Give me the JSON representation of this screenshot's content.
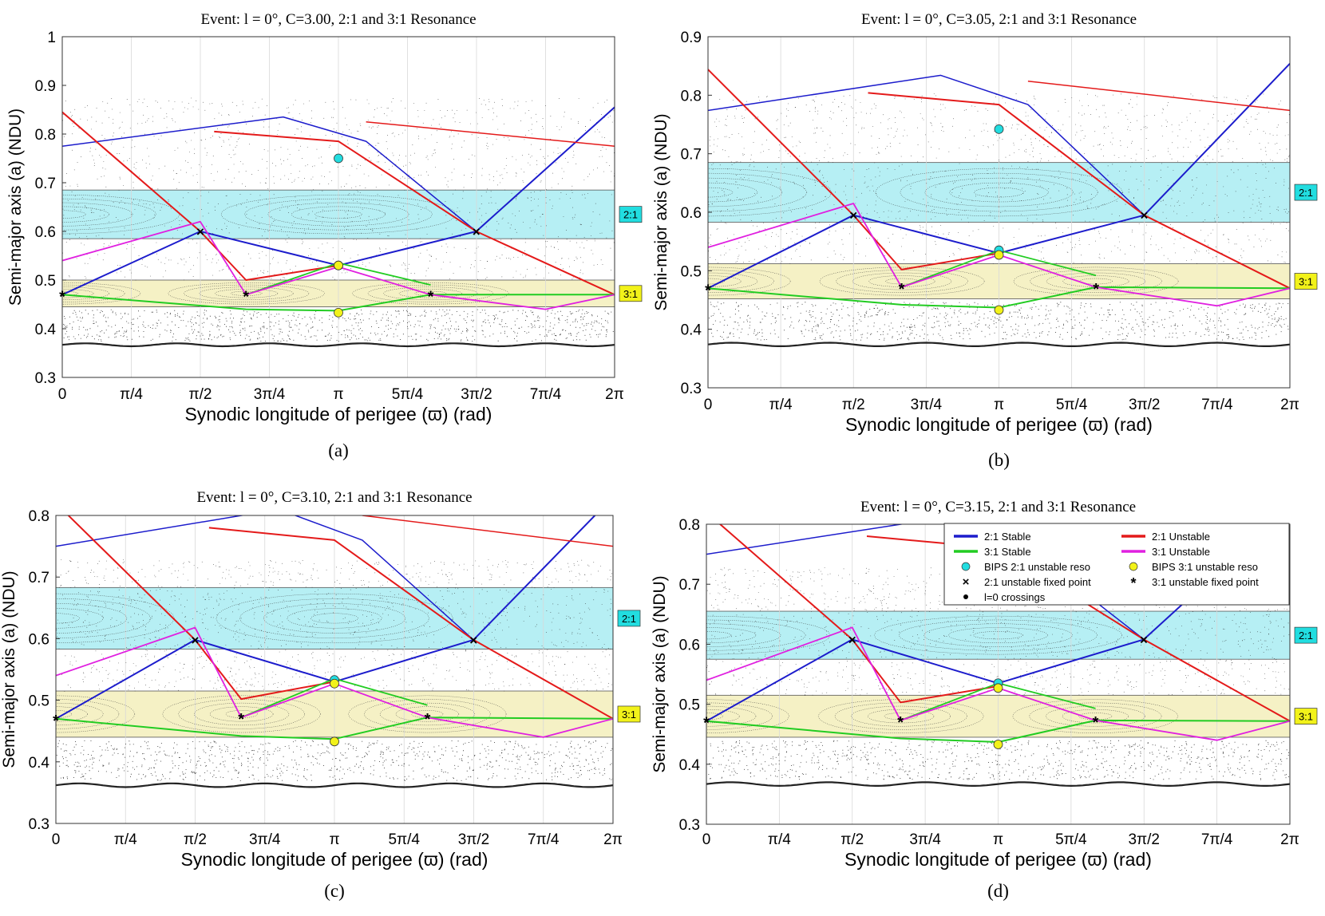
{
  "figure": {
    "xlabel": "Synodic longitude of perigee (ϖ) (rad)",
    "ylabel": "Semi-major axis (a) (NDU)",
    "x_ticks": [
      "0",
      "π/4",
      "π/2",
      "3π/4",
      "π",
      "5π/4",
      "3π/2",
      "7π/4",
      "2π"
    ],
    "colors": {
      "stable21": "#1c1ccc",
      "unstable21": "#e41a1a",
      "stable31": "#22cc22",
      "unstable31": "#e020e0",
      "band21": "#9eeaf0",
      "band31": "#f3eebb",
      "bips21": "#22dde0",
      "bips31": "#f2f21a"
    },
    "legend": {
      "items": [
        {
          "label": "2:1 Stable",
          "kind": "line",
          "color": "#1c1ccc"
        },
        {
          "label": "2:1 Unstable",
          "kind": "line",
          "color": "#e41a1a"
        },
        {
          "label": "3:1 Stable",
          "kind": "line",
          "color": "#22cc22"
        },
        {
          "label": "3:1 Unstable",
          "kind": "line",
          "color": "#e020e0"
        },
        {
          "label": "BIPS 2:1 unstable reso",
          "kind": "circle",
          "color": "#22dde0"
        },
        {
          "label": "BIPS 3:1 unstable reso",
          "kind": "circle",
          "color": "#f2f21a"
        },
        {
          "label": "2:1 unstable fixed point",
          "kind": "x",
          "color": "#000000"
        },
        {
          "label": "3:1 unstable fixed point",
          "kind": "star",
          "color": "#000000"
        },
        {
          "label": "l=0 crossings",
          "kind": "dot",
          "color": "#000000"
        }
      ]
    }
  },
  "chart_data": [
    {
      "type": "scatter",
      "title": "Event: l = 0°, C=3.00, 2:1 and 3:1 Resonance",
      "caption": "(a)",
      "xlabel": "Synodic longitude of perigee (ϖ) (rad)",
      "ylabel": "Semi-major axis (a) (NDU)",
      "xlim": [
        0,
        6.2832
      ],
      "ylim": [
        0.3,
        1.0
      ],
      "y_ticks": [
        "0.3",
        "0.4",
        "0.5",
        "0.6",
        "0.7",
        "0.8",
        "0.9",
        "1"
      ],
      "band_21": {
        "range": [
          0.585,
          0.685
        ],
        "label": "2:1"
      },
      "band_31": {
        "range": [
          0.445,
          0.5
        ],
        "label": "3:1"
      },
      "fixed_points_21": [
        {
          "x": 1.57,
          "y": 0.6
        },
        {
          "x": 4.71,
          "y": 0.6
        }
      ],
      "fixed_points_31": [
        {
          "x": 0.0,
          "y": 0.47
        },
        {
          "x": 2.09,
          "y": 0.47
        },
        {
          "x": 4.19,
          "y": 0.47
        }
      ],
      "bips_21": [
        {
          "x": 3.1416,
          "y": 0.75
        },
        {
          "x": 3.1416,
          "y": 0.53
        }
      ],
      "bips_31": [
        {
          "x": 3.1416,
          "y": 0.53
        },
        {
          "x": 3.1416,
          "y": 0.433
        }
      ]
    },
    {
      "type": "scatter",
      "title": "Event: l = 0°, C=3.05, 2:1 and 3:1 Resonance",
      "caption": "(b)",
      "xlabel": "Synodic longitude of perigee (ϖ) (rad)",
      "ylabel": "Semi-major axis (a) (NDU)",
      "xlim": [
        0,
        6.2832
      ],
      "ylim": [
        0.3,
        0.9
      ],
      "y_ticks": [
        "0.3",
        "0.4",
        "0.5",
        "0.6",
        "0.7",
        "0.8",
        "0.9"
      ],
      "band_21": {
        "range": [
          0.583,
          0.685
        ],
        "label": "2:1"
      },
      "band_31": {
        "range": [
          0.452,
          0.512
        ],
        "label": "3:1"
      },
      "fixed_points_21": [
        {
          "x": 1.57,
          "y": 0.595
        },
        {
          "x": 4.71,
          "y": 0.595
        }
      ],
      "fixed_points_31": [
        {
          "x": 0.0,
          "y": 0.47
        },
        {
          "x": 2.09,
          "y": 0.472
        },
        {
          "x": 4.19,
          "y": 0.472
        }
      ],
      "bips_21": [
        {
          "x": 3.1416,
          "y": 0.742
        },
        {
          "x": 3.1416,
          "y": 0.535
        }
      ],
      "bips_31": [
        {
          "x": 3.1416,
          "y": 0.527
        },
        {
          "x": 3.1416,
          "y": 0.433
        }
      ]
    },
    {
      "type": "scatter",
      "title": "Event: l = 0°, C=3.10, 2:1 and 3:1 Resonance",
      "caption": "(c)",
      "xlabel": "Synodic longitude of perigee (ϖ) (rad)",
      "ylabel": "Semi-major axis (a) (NDU)",
      "xlim": [
        0,
        6.2832
      ],
      "ylim": [
        0.3,
        0.8
      ],
      "y_ticks": [
        "0.3",
        "0.4",
        "0.5",
        "0.6",
        "0.7",
        "0.8"
      ],
      "band_21": {
        "range": [
          0.583,
          0.683
        ],
        "label": "2:1"
      },
      "band_31": {
        "range": [
          0.44,
          0.515
        ],
        "label": "3:1"
      },
      "fixed_points_21": [
        {
          "x": 1.57,
          "y": 0.598
        },
        {
          "x": 4.71,
          "y": 0.598
        }
      ],
      "fixed_points_31": [
        {
          "x": 0.0,
          "y": 0.47
        },
        {
          "x": 2.09,
          "y": 0.472
        },
        {
          "x": 4.19,
          "y": 0.472
        }
      ],
      "bips_21": [
        {
          "x": 3.1416,
          "y": 0.533
        }
      ],
      "bips_31": [
        {
          "x": 3.1416,
          "y": 0.527
        },
        {
          "x": 3.1416,
          "y": 0.433
        }
      ]
    },
    {
      "type": "scatter",
      "title": "Event: l = 0°, C=3.15, 2:1 and 3:1 Resonance",
      "caption": "(d)",
      "xlabel": "Synodic longitude of perigee (ϖ) (rad)",
      "ylabel": "Semi-major axis (a) (NDU)",
      "xlim": [
        0,
        6.2832
      ],
      "ylim": [
        0.3,
        0.8
      ],
      "y_ticks": [
        "0.3",
        "0.4",
        "0.5",
        "0.6",
        "0.7",
        "0.8"
      ],
      "band_21": {
        "range": [
          0.575,
          0.655
        ],
        "label": "2:1"
      },
      "band_31": {
        "range": [
          0.445,
          0.515
        ],
        "label": "3:1"
      },
      "fixed_points_21": [
        {
          "x": 1.57,
          "y": 0.608
        },
        {
          "x": 4.71,
          "y": 0.608
        }
      ],
      "fixed_points_31": [
        {
          "x": 0.0,
          "y": 0.472
        },
        {
          "x": 2.09,
          "y": 0.473
        },
        {
          "x": 4.19,
          "y": 0.473
        }
      ],
      "bips_21": [
        {
          "x": 3.1416,
          "y": 0.535
        }
      ],
      "bips_31": [
        {
          "x": 3.1416,
          "y": 0.527
        },
        {
          "x": 3.1416,
          "y": 0.433
        }
      ]
    }
  ]
}
